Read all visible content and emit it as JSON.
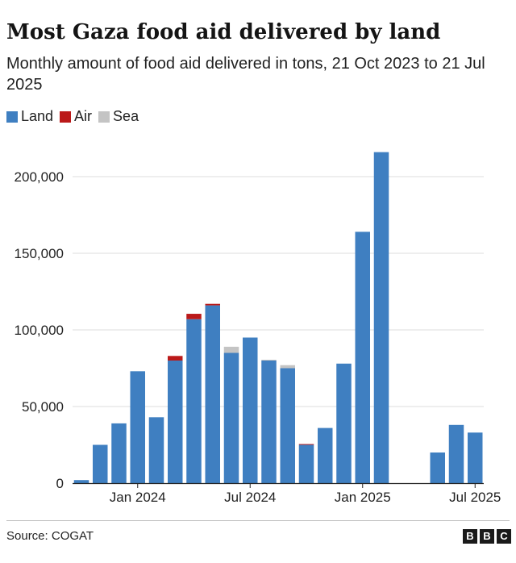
{
  "chart_data": {
    "type": "bar",
    "stacked": true,
    "title": "Most Gaza food aid delivered by land",
    "subtitle": "Monthly amount of food aid delivered in tons, 21 Oct 2023 to 21 Jul 2025",
    "xlabel": "",
    "ylabel": "",
    "ylim": [
      0,
      210000
    ],
    "yticks": [
      0,
      50000,
      100000,
      150000,
      200000
    ],
    "ytick_labels": [
      "0",
      "50,000",
      "100,000",
      "150,000",
      "200,000"
    ],
    "categories": [
      "Oct 2023",
      "Nov 2023",
      "Dec 2023",
      "Jan 2024",
      "Feb 2024",
      "Mar 2024",
      "Apr 2024",
      "May 2024",
      "Jun 2024",
      "Jul 2024",
      "Aug 2024",
      "Sep 2024",
      "Oct 2024",
      "Nov 2024",
      "Dec 2024",
      "Jan 2025",
      "Feb 2025",
      "Mar 2025",
      "Apr 2025",
      "May 2025",
      "Jun 2025",
      "Jul 2025"
    ],
    "xtick_labels": [
      {
        "label": "Jan 2024",
        "index": 3
      },
      {
        "label": "Jul 2024",
        "index": 9
      },
      {
        "label": "Jan 2025",
        "index": 15
      },
      {
        "label": "Jul 2025",
        "index": 21
      }
    ],
    "series": [
      {
        "name": "Land",
        "color": "#3f7fc1",
        "values": [
          2000,
          25000,
          39000,
          73000,
          43000,
          80000,
          107000,
          116000,
          85000,
          95000,
          80000,
          75000,
          25000,
          36000,
          78000,
          164000,
          216000,
          0,
          0,
          20000,
          38000,
          33000
        ]
      },
      {
        "name": "Air",
        "color": "#bb1919",
        "values": [
          0,
          0,
          0,
          0,
          0,
          3000,
          3500,
          1000,
          0,
          0,
          0,
          0,
          500,
          0,
          0,
          0,
          0,
          0,
          0,
          0,
          0,
          0
        ]
      },
      {
        "name": "Sea",
        "color": "#c4c4c4",
        "values": [
          0,
          0,
          0,
          0,
          0,
          0,
          0,
          0,
          4000,
          0,
          500,
          2000,
          0,
          0,
          0,
          0,
          0,
          0,
          0,
          0,
          0,
          0
        ]
      }
    ],
    "source": "Source: COGAT"
  },
  "logo": {
    "letters": [
      "B",
      "B",
      "C"
    ]
  },
  "colors": {
    "gridline": "#dcdcdc",
    "axis": "#222222"
  }
}
